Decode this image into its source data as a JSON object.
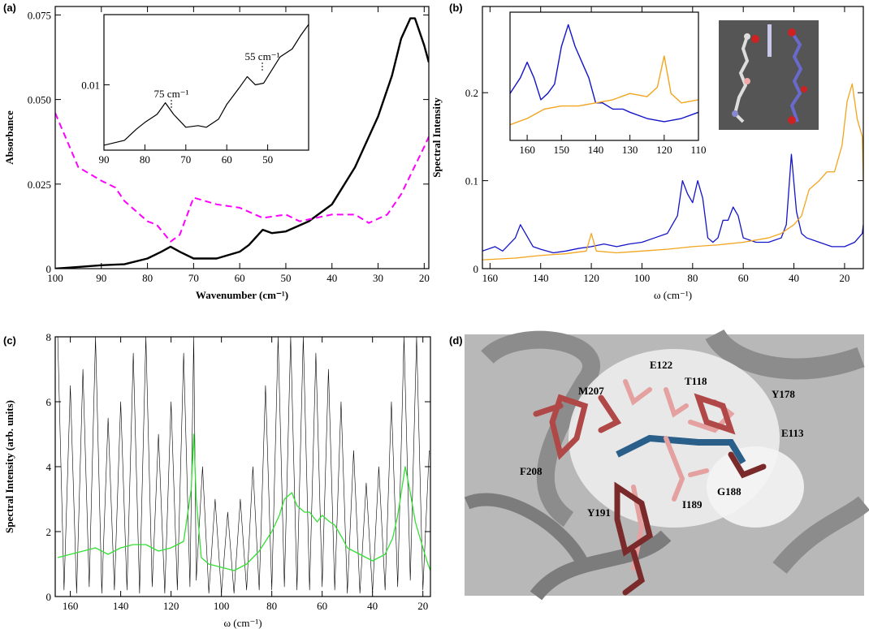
{
  "chart_data": [
    {
      "type": "line",
      "title": "(a)",
      "x_label": "Wavenumber (cm⁻¹)",
      "y_label": "Absorbance",
      "xlim": [
        100,
        19
      ],
      "ylim": [
        0,
        0.0775
      ],
      "xticks": [
        100,
        90,
        80,
        70,
        60,
        50,
        40,
        30,
        20
      ],
      "yticks": [
        0,
        0.025,
        {
          "value": 0.05,
          "label": "0.050"
        },
        0.075
      ],
      "series": [
        {
          "color": "#000000",
          "x": [
            100,
            95,
            90,
            85,
            80,
            77,
            75,
            73,
            70,
            65,
            60,
            58,
            55,
            53,
            50,
            45,
            40,
            35,
            30,
            27,
            25,
            23,
            22,
            20,
            19
          ],
          "values": [
            0,
            0.0005,
            0.001,
            0.0013,
            0.003,
            0.005,
            0.0065,
            0.005,
            0.003,
            0.003,
            0.005,
            0.007,
            0.0115,
            0.0105,
            0.011,
            0.014,
            0.019,
            0.03,
            0.045,
            0.057,
            0.068,
            0.074,
            0.074,
            0.066,
            0.061
          ]
        },
        {
          "color": "#ff00ff",
          "style": "dashed",
          "x": [
            100,
            95,
            90,
            87,
            85,
            80,
            78,
            75,
            73,
            70,
            65,
            60,
            55,
            50,
            47,
            40,
            35,
            32,
            28,
            25,
            20,
            19
          ],
          "values": [
            0.046,
            0.03,
            0.026,
            0.024,
            0.02,
            0.014,
            0.013,
            0.008,
            0.01,
            0.021,
            0.019,
            0.018,
            0.015,
            0.016,
            0.014,
            0.016,
            0.016,
            0.0135,
            0.016,
            0.022,
            0.036,
            0.039
          ]
        }
      ]
    },
    {
      "type": "line",
      "xlim": [
        90,
        40
      ],
      "ylim": [
        0.006,
        0.0143
      ],
      "xticks": [
        90,
        80,
        70,
        60,
        50
      ],
      "yticks": [
        0.01
      ],
      "annotations": [
        "75 cm⁻¹",
        "55 cm⁻¹"
      ],
      "series": [
        {
          "color": "#000000",
          "x": [
            90,
            85,
            82,
            80,
            77,
            75,
            73,
            70,
            67,
            65,
            62,
            60,
            57,
            55,
            53,
            51,
            49,
            47,
            44,
            42,
            40
          ],
          "values": [
            0.0063,
            0.0066,
            0.0073,
            0.0077,
            0.0082,
            0.0089,
            0.0082,
            0.0074,
            0.0075,
            0.0074,
            0.0079,
            0.0088,
            0.0098,
            0.0105,
            0.01,
            0.0101,
            0.0109,
            0.0117,
            0.0122,
            0.013,
            0.0137
          ]
        }
      ]
    },
    {
      "type": "line",
      "title": "(b)",
      "x_label": "ω (cm⁻¹)",
      "y_label": "Spectral Intensity",
      "xlim": [
        163,
        12.6
      ],
      "ylim": [
        0,
        0.298
      ],
      "xticks": [
        160,
        140,
        120,
        100,
        80,
        60,
        40,
        20
      ],
      "yticks": [
        0,
        0.1,
        0.2
      ],
      "series": [
        {
          "color": "#1414c8",
          "x": [
            163,
            158,
            155,
            150,
            148,
            146,
            143,
            140,
            135,
            130,
            125,
            120,
            115,
            110,
            105,
            100,
            95,
            90,
            86,
            84,
            82,
            80,
            78,
            76,
            74,
            72,
            70,
            68,
            66,
            64,
            62,
            60,
            55,
            50,
            45,
            43,
            41,
            39,
            37,
            35,
            30,
            25,
            20,
            16,
            13,
            12.6
          ],
          "values": [
            0.02,
            0.025,
            0.02,
            0.035,
            0.05,
            0.04,
            0.025,
            0.022,
            0.018,
            0.02,
            0.023,
            0.025,
            0.028,
            0.025,
            0.028,
            0.03,
            0.035,
            0.04,
            0.06,
            0.1,
            0.085,
            0.075,
            0.1,
            0.08,
            0.035,
            0.03,
            0.035,
            0.055,
            0.055,
            0.07,
            0.06,
            0.035,
            0.03,
            0.03,
            0.035,
            0.05,
            0.13,
            0.065,
            0.04,
            0.035,
            0.03,
            0.025,
            0.025,
            0.03,
            0.04,
            0.05
          ]
        },
        {
          "color": "#f2a51e",
          "x": [
            163,
            150,
            140,
            130,
            122,
            120,
            118,
            110,
            100,
            90,
            80,
            70,
            60,
            50,
            45,
            40,
            37,
            34,
            30,
            27,
            24,
            21,
            19,
            17,
            15,
            13,
            12.6
          ],
          "values": [
            0.01,
            0.012,
            0.015,
            0.017,
            0.02,
            0.04,
            0.02,
            0.018,
            0.02,
            0.022,
            0.025,
            0.027,
            0.03,
            0.035,
            0.04,
            0.05,
            0.06,
            0.09,
            0.1,
            0.11,
            0.11,
            0.14,
            0.19,
            0.21,
            0.17,
            0.15,
            0.1
          ]
        }
      ]
    },
    {
      "type": "line",
      "xlim": [
        165,
        110
      ],
      "ylim": [
        0.015,
        0.056
      ],
      "xticks": [
        160,
        150,
        140,
        130,
        120,
        110
      ],
      "yticks": [],
      "series": [
        {
          "color": "#1414c8",
          "x": [
            165,
            162,
            160,
            158,
            156,
            154,
            152,
            150,
            148,
            146,
            144,
            142,
            140,
            138,
            135,
            132,
            130,
            125,
            120,
            115,
            110
          ],
          "values": [
            0.03,
            0.035,
            0.04,
            0.035,
            0.028,
            0.03,
            0.033,
            0.045,
            0.052,
            0.045,
            0.04,
            0.035,
            0.027,
            0.027,
            0.025,
            0.025,
            0.024,
            0.022,
            0.021,
            0.022,
            0.024
          ]
        },
        {
          "color": "#f2a51e",
          "x": [
            165,
            160,
            155,
            150,
            145,
            140,
            135,
            130,
            125,
            122,
            120,
            118,
            115,
            110
          ],
          "values": [
            0.02,
            0.022,
            0.025,
            0.026,
            0.026,
            0.027,
            0.028,
            0.03,
            0.029,
            0.032,
            0.042,
            0.03,
            0.027,
            0.028
          ]
        }
      ]
    },
    {
      "type": "line",
      "title": "(c)",
      "x_label": "ω (cm⁻¹)",
      "y_label": "Spectral Intensity (arb. units)",
      "xlim": [
        166,
        17
      ],
      "ylim": [
        0,
        8
      ],
      "xticks": [
        160,
        140,
        120,
        100,
        80,
        60,
        40,
        20
      ],
      "yticks": [
        0,
        2,
        4,
        6,
        8
      ],
      "series": [
        {
          "color": "#000000",
          "x": [
            165,
            162.5,
            160,
            157.5,
            155,
            152.5,
            150,
            147.5,
            145,
            142.5,
            140,
            137.5,
            135,
            132.5,
            130,
            127.5,
            125,
            122.5,
            120,
            117.5,
            115,
            112.5,
            111,
            110,
            107.5,
            105,
            102.5,
            100,
            97.5,
            95,
            92.5,
            90,
            87.5,
            85,
            82.5,
            80,
            77.5,
            75,
            72.5,
            70,
            67.5,
            65,
            62.5,
            60,
            57.5,
            55,
            52.5,
            50,
            47.5,
            45,
            42.5,
            40,
            37.5,
            35,
            32.5,
            30,
            27.5,
            25,
            22.5,
            20,
            17.5
          ],
          "values": [
            8,
            0.2,
            6.5,
            0.1,
            7,
            0.3,
            8,
            0.1,
            5.5,
            0.2,
            6,
            0.2,
            7.5,
            0.1,
            8,
            0.3,
            5,
            0.1,
            6,
            0.2,
            7.5,
            0.3,
            8,
            0.5,
            4,
            0.1,
            3,
            0.1,
            2.6,
            0.1,
            3,
            0.2,
            4,
            0.2,
            6.5,
            0.2,
            8,
            0.3,
            8,
            0.2,
            8,
            0.2,
            7.5,
            0.3,
            7,
            0.2,
            6,
            0.1,
            4.5,
            0.1,
            3.5,
            0.1,
            4,
            0.2,
            6,
            0.3,
            8,
            0.5,
            8,
            0.2,
            4.5
          ]
        },
        {
          "color": "#33e033",
          "x": [
            165,
            160,
            155,
            150,
            145,
            140,
            135,
            130,
            125,
            120,
            115,
            112,
            111,
            110,
            108,
            105,
            100,
            95,
            90,
            85,
            80,
            77,
            75,
            72,
            70,
            67,
            65,
            62,
            60,
            57,
            55,
            52,
            50,
            45,
            40,
            35,
            32,
            30,
            28,
            27,
            25,
            23,
            20,
            18,
            17
          ],
          "values": [
            1.2,
            1.3,
            1.4,
            1.5,
            1.3,
            1.5,
            1.6,
            1.6,
            1.4,
            1.5,
            1.7,
            3.3,
            5,
            3,
            1.2,
            1.0,
            0.9,
            0.8,
            1.0,
            1.4,
            2.0,
            2.5,
            3.0,
            3.2,
            2.8,
            2.6,
            2.6,
            2.3,
            2.5,
            2.3,
            2.2,
            1.8,
            1.5,
            1.3,
            1.1,
            1.3,
            1.8,
            2.5,
            3.5,
            4.0,
            3.2,
            2.3,
            1.5,
            1.0,
            0.8
          ]
        }
      ]
    }
  ],
  "panel_d": {
    "label": "(d)",
    "residues": [
      "E122",
      "T118",
      "Y178",
      "M207",
      "E113",
      "F208",
      "G188",
      "I189",
      "Y191"
    ]
  }
}
